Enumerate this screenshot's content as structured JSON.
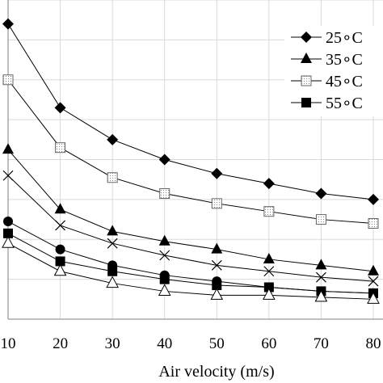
{
  "chart_data": {
    "type": "line",
    "title": "",
    "xlabel": "Air velocity (m/s)",
    "ylabel": "",
    "x": [
      10,
      20,
      30,
      40,
      50,
      60,
      70,
      80
    ],
    "xticks": [
      "10",
      "20",
      "30",
      "40",
      "50",
      "60",
      "70",
      "80"
    ],
    "xlim": [
      10,
      80
    ],
    "ylim": [
      0,
      16
    ],
    "grid": true,
    "legend_position": "top-right",
    "series": [
      {
        "name": "25∘C",
        "marker": "diamond",
        "values": [
          14.8,
          10.6,
          9.0,
          8.0,
          7.3,
          6.8,
          6.3,
          6.0
        ]
      },
      {
        "name": "35∘C",
        "marker": "triangle",
        "values": [
          8.5,
          5.5,
          4.4,
          3.9,
          3.5,
          3.0,
          2.7,
          2.4
        ]
      },
      {
        "name": "45∘C",
        "marker": "square-dotted",
        "values": [
          12.0,
          8.6,
          7.1,
          6.3,
          5.8,
          5.4,
          5.0,
          4.8
        ]
      },
      {
        "name": "55∘C",
        "marker": "square-filled",
        "values": [
          4.3,
          2.9,
          2.4,
          2.0,
          1.7,
          1.6,
          1.4,
          1.3
        ]
      },
      {
        "name": "",
        "marker": "x",
        "values": [
          7.2,
          4.7,
          3.8,
          3.2,
          2.7,
          2.4,
          2.1,
          1.9
        ]
      },
      {
        "name": "",
        "marker": "circle",
        "values": [
          4.9,
          3.5,
          2.7,
          2.2,
          1.9,
          1.6,
          1.4,
          1.3
        ]
      },
      {
        "name": "",
        "marker": "triangle-open",
        "values": [
          3.8,
          2.4,
          1.8,
          1.4,
          1.2,
          1.2,
          1.1,
          1.0
        ]
      }
    ]
  }
}
